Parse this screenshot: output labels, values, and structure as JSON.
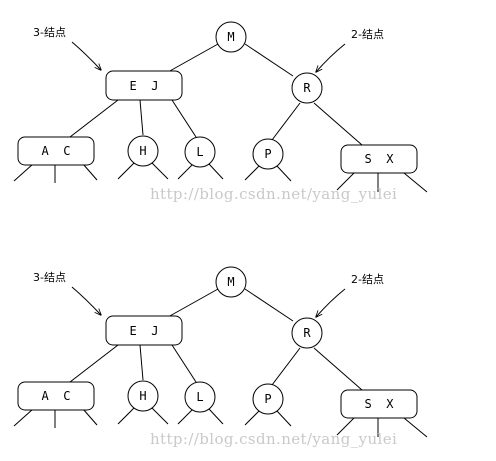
{
  "watermark": "http://blog.csdn.net/yang_yulei",
  "callouts": {
    "three_node": "3-结点",
    "two_node": "2-结点"
  },
  "nodes": {
    "M": "M",
    "EJ": "E  J",
    "R": "R",
    "AC": "A  C",
    "H": "H",
    "L": "L",
    "P": "P",
    "SX": "S  X"
  }
}
